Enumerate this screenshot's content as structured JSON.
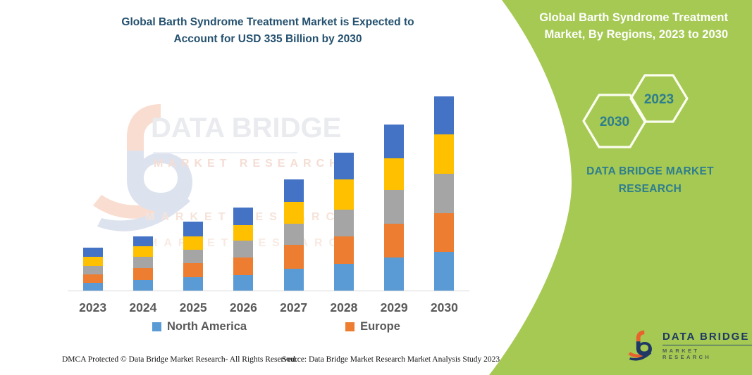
{
  "header": {
    "title": "Global Barth Syndrome Treatment Market is Expected to Account for USD 335 Billion by 2030"
  },
  "side_panel": {
    "heading": "Global Barth Syndrome Treatment Market, By Regions, 2023 to 2030",
    "hexagons": [
      {
        "label": "2030"
      },
      {
        "label": "2023"
      }
    ],
    "brand_text": "DATA BRIDGE MARKET RESEARCH",
    "bg_color": "#a5c953",
    "heading_color": "#ffffff",
    "accent_color": "#2e7d8e"
  },
  "chart_data": {
    "type": "bar",
    "stacked": true,
    "title": "Global Barth Syndrome Treatment Market is Expected to Account for USD 335 Billion by 2030",
    "unit": "USD Billion (segment values estimated from bar heights; 2030 total stated as 335)",
    "categories": [
      "2023",
      "2024",
      "2025",
      "2026",
      "2027",
      "2028",
      "2029",
      "2030"
    ],
    "series": [
      {
        "name": "North America",
        "color": "#5B9BD5",
        "values": [
          13,
          18,
          23,
          27,
          38,
          46,
          57,
          67
        ]
      },
      {
        "name": "Europe",
        "color": "#ED7D31",
        "values": [
          15,
          21,
          24,
          30,
          41,
          47,
          58,
          67
        ]
      },
      {
        "name": "unlabeled-gray",
        "color": "#A5A5A5",
        "values": [
          15,
          19,
          24,
          29,
          36,
          47,
          58,
          68
        ]
      },
      {
        "name": "unlabeled-yellow",
        "color": "#FFC000",
        "values": [
          15,
          18,
          23,
          27,
          38,
          52,
          55,
          67
        ]
      },
      {
        "name": "unlabeled-dark-blue",
        "color": "#4472C4",
        "values": [
          16,
          18,
          25,
          30,
          39,
          46,
          59,
          66
        ]
      }
    ],
    "totals_estimated": [
      74,
      94,
      119,
      143,
      192,
      238,
      287,
      335
    ],
    "ylim": [
      0,
      340
    ],
    "gridlines": false,
    "x_axis_visible": true,
    "y_axis_visible": false,
    "legend_position": "bottom",
    "legend_labeled_series": [
      "North America",
      "Europe"
    ]
  },
  "legend": [
    {
      "label": "North America",
      "color": "#5B9BD5"
    },
    {
      "label": "Europe",
      "color": "#ED7D31"
    }
  ],
  "watermark": {
    "brand": "DATA BRIDGE",
    "sub": "MARKET RESEARCH"
  },
  "footer": {
    "left": "DMCA Protected © Data Bridge Market Research-  All Rights Reserved.",
    "right": "Source: Data Bridge Market Research  Market Analysis Study 2023"
  },
  "brand_footer": {
    "name": "DATA BRIDGE",
    "sub": "MARKET RESEARCH"
  }
}
